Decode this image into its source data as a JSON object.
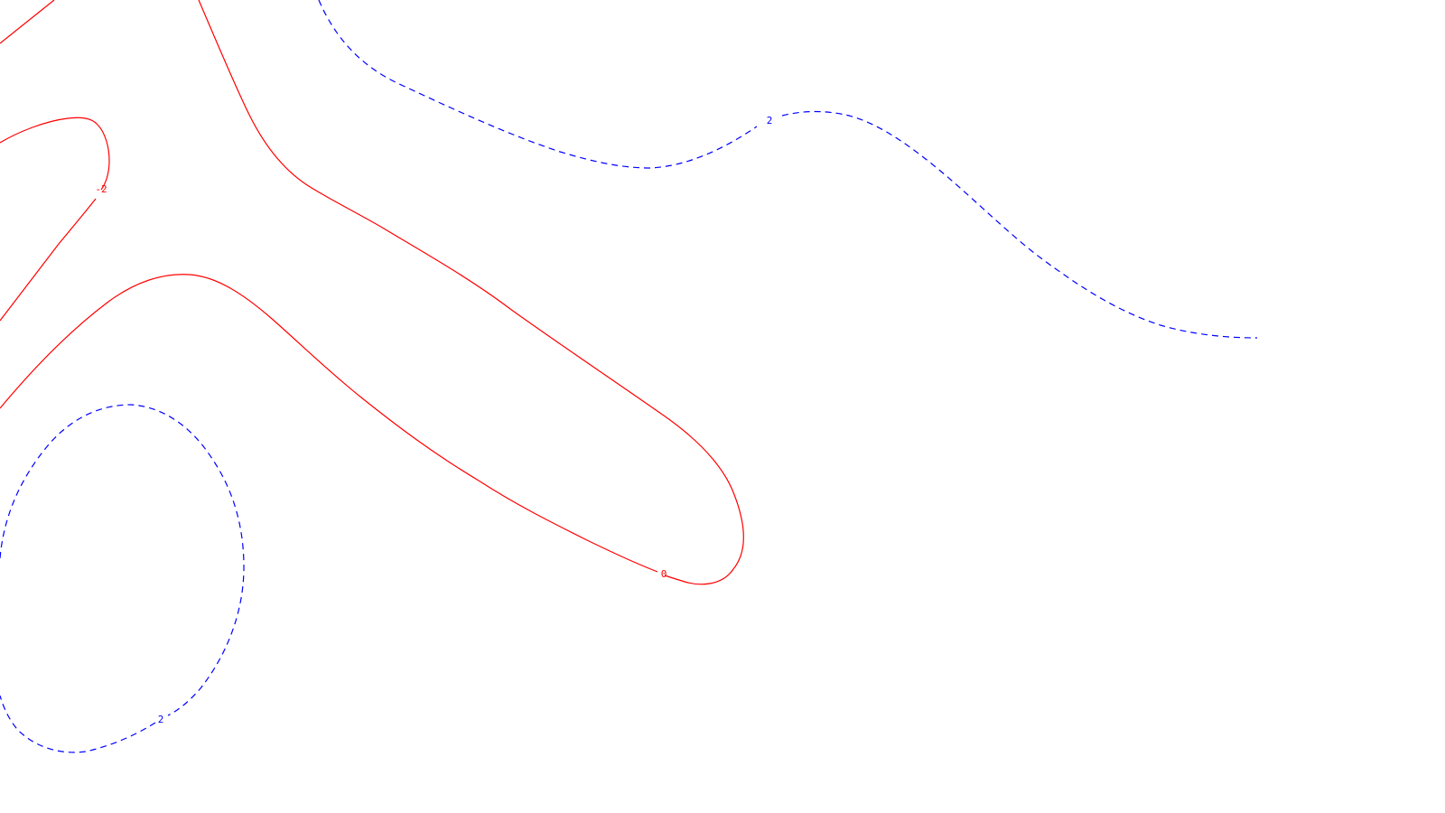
{
  "chart_data": {
    "type": "contour",
    "title": "",
    "xlabel": "",
    "ylabel": "",
    "grid": false,
    "legend": "none",
    "colors": {
      "negative": "#ff0000",
      "positive": "#0000ff",
      "zero": "#ff0000"
    },
    "contours": [
      {
        "level": -2,
        "label": "-2",
        "style": "solid",
        "color": "#ff0000"
      },
      {
        "level": 0,
        "label": "0",
        "style": "solid",
        "color": "#ff0000"
      },
      {
        "level": 2,
        "label": "2",
        "style": "dashed",
        "color": "#0000ff"
      }
    ]
  }
}
